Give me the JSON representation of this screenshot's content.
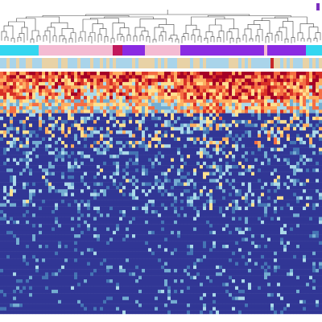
{
  "chart_data": {
    "type": "heatmap",
    "grid": false,
    "n_columns": 100,
    "n_rows": 70,
    "dendrogram": true,
    "annotation_tracks": [
      {
        "categories": [
          "cyan",
          "pink",
          "purple",
          "magenta"
        ],
        "colors": {
          "cyan": "#33d6f0",
          "pink": "#f4bbd2",
          "purple": "#8a2be2",
          "magenta": "#c2185b"
        }
      },
      {
        "categories": [
          "light-blue",
          "tan",
          "red"
        ],
        "colors": {
          "light-blue": "#a9d4ea",
          "tan": "#e8d2a6",
          "red": "#c62828"
        }
      }
    ],
    "color_scale": [
      "#313695",
      "#4575b4",
      "#74add1",
      "#abd9e9",
      "#fee090",
      "#fdae61",
      "#f46d43",
      "#d73027",
      "#a50026"
    ],
    "value_range": [
      0,
      1
    ],
    "legend_swatch": {
      "color": "#7b2fbf",
      "placement": "top-right"
    }
  }
}
